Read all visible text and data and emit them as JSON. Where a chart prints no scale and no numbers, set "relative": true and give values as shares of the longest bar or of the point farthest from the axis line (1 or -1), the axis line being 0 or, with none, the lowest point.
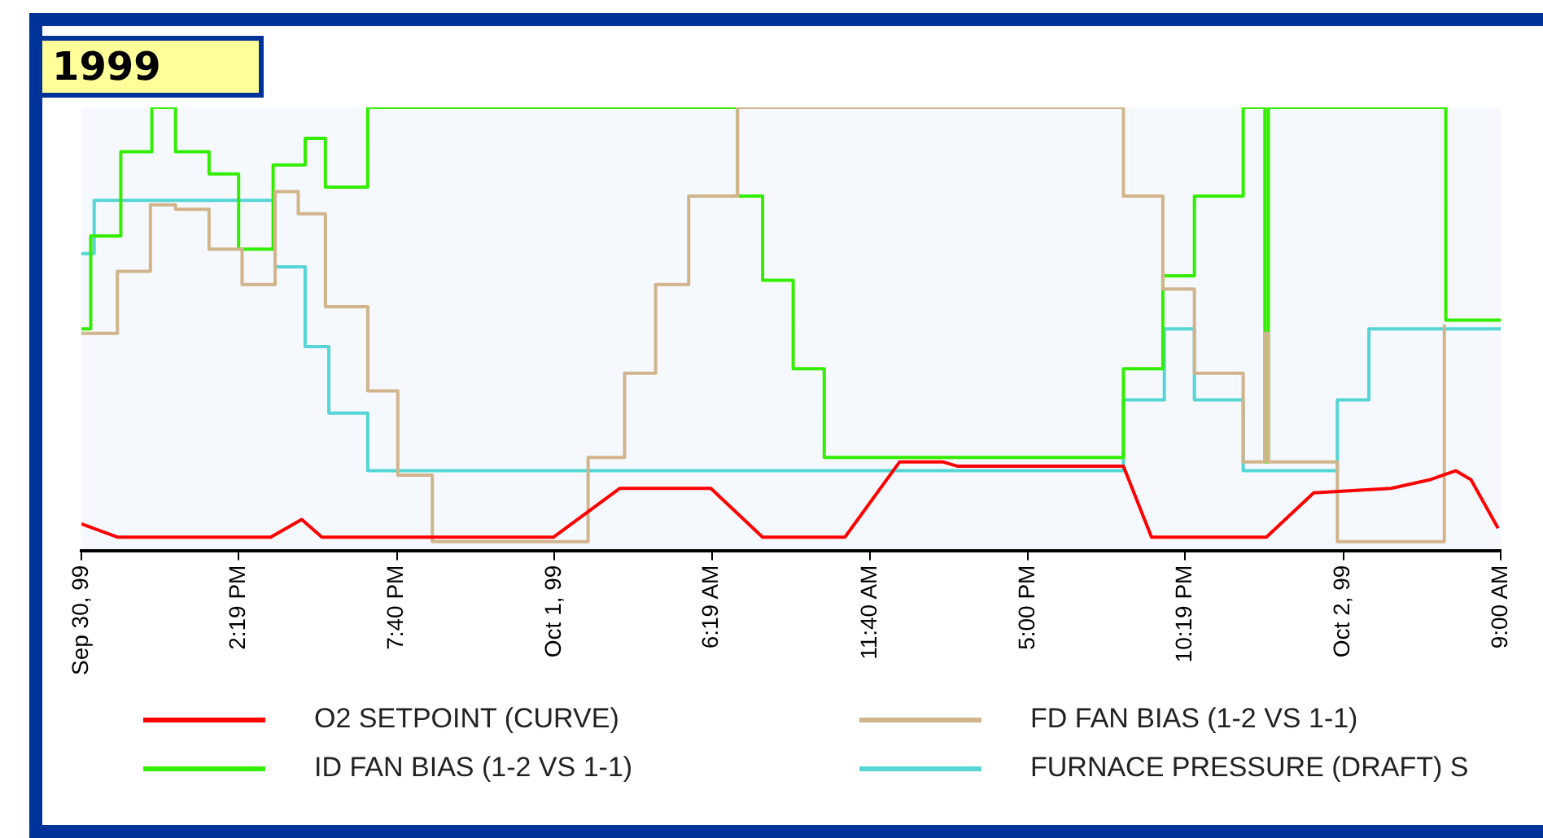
{
  "chart_data": {
    "type": "line",
    "title": "1999",
    "relative": true,
    "xlim": [
      "1999-09-30T09:00",
      "1999-10-02T09:00"
    ],
    "xticks": [
      {
        "value": "1999-09-30T09:00",
        "label": "Sep 30, 99"
      },
      {
        "value": "1999-09-30T14:19",
        "label": "2:19 PM"
      },
      {
        "value": "1999-09-30T19:40",
        "label": "7:40 PM"
      },
      {
        "value": "1999-10-01T01:00",
        "label": "Oct 1, 99"
      },
      {
        "value": "1999-10-01T06:19",
        "label": "6:19 AM"
      },
      {
        "value": "1999-10-01T11:40",
        "label": "11:40 AM"
      },
      {
        "value": "1999-10-01T17:00",
        "label": "5:00 PM"
      },
      {
        "value": "1999-10-01T22:19",
        "label": "10:19 PM"
      },
      {
        "value": "1999-10-02T03:40",
        "label": "Oct 2, 99"
      },
      {
        "value": "1999-10-02T09:00",
        "label": "9:00 AM"
      }
    ],
    "legend": "bottom",
    "marker": "none",
    "line_style": "solid",
    "series": [
      {
        "name": "O2 SETPOINT (CURVE)",
        "color": "#ff0000",
        "x": [
          "1999-09-30T09:00",
          "1999-09-30T10:13",
          "1999-09-30T15:24",
          "1999-09-30T16:27",
          "1999-09-30T17:08",
          "1999-10-01T00:58",
          "1999-10-01T03:12",
          "1999-10-01T06:17",
          "1999-10-01T08:02",
          "1999-10-01T10:49",
          "1999-10-01T12:40",
          "1999-10-01T14:07",
          "1999-10-01T14:38",
          "1999-10-01T20:14",
          "1999-10-01T21:11",
          "1999-10-02T01:04",
          "1999-10-02T02:40",
          "1999-10-02T05:17",
          "1999-10-02T06:37",
          "1999-10-02T07:28",
          "1999-10-02T07:59",
          "1999-10-02T08:54"
        ],
        "values": [
          0.06,
          0.03,
          0.03,
          0.07,
          0.03,
          0.03,
          0.14,
          0.14,
          0.03,
          0.03,
          0.2,
          0.2,
          0.19,
          0.19,
          0.03,
          0.03,
          0.13,
          0.14,
          0.16,
          0.18,
          0.16,
          0.05
        ]
      },
      {
        "name": "FD FAN BIAS (1-2 VS 1-1)",
        "color": "#d2b48c",
        "x": [
          "1999-09-30T09:00",
          "1999-09-30T10:13",
          "1999-09-30T10:13",
          "1999-09-30T11:20",
          "1999-09-30T11:20",
          "1999-09-30T12:11",
          "1999-09-30T12:11",
          "1999-09-30T13:19",
          "1999-09-30T13:19",
          "1999-09-30T14:26",
          "1999-09-30T14:26",
          "1999-09-30T15:33",
          "1999-09-30T15:33",
          "1999-09-30T16:20",
          "1999-09-30T16:20",
          "1999-09-30T17:15",
          "1999-09-30T17:15",
          "1999-09-30T18:41",
          "1999-09-30T18:41",
          "1999-09-30T19:42",
          "1999-09-30T19:42",
          "1999-09-30T20:52",
          "1999-09-30T20:52",
          "1999-10-01T02:08",
          "1999-10-01T02:08",
          "1999-10-01T03:22",
          "1999-10-01T03:22",
          "1999-10-01T04:25",
          "1999-10-01T04:25",
          "1999-10-01T05:32",
          "1999-10-01T05:32",
          "1999-10-01T07:11",
          "1999-10-01T07:11",
          "1999-10-01T20:14",
          "1999-10-01T20:14",
          "1999-10-01T21:34",
          "1999-10-01T21:34",
          "1999-10-01T22:38",
          "1999-10-01T22:38",
          "1999-10-02T00:17",
          "1999-10-02T00:17",
          "1999-10-02T01:01",
          "1999-10-02T01:01",
          "1999-10-02T01:08",
          "1999-10-02T01:08",
          "1999-10-02T03:28",
          "1999-10-02T03:28",
          "1999-10-02T07:05",
          "1999-10-02T07:05"
        ],
        "values": [
          0.49,
          0.49,
          0.63,
          0.63,
          0.78,
          0.78,
          0.77,
          0.77,
          0.68,
          0.68,
          0.6,
          0.6,
          0.81,
          0.81,
          0.76,
          0.76,
          0.55,
          0.55,
          0.36,
          0.36,
          0.17,
          0.17,
          0.02,
          0.02,
          0.21,
          0.21,
          0.4,
          0.4,
          0.6,
          0.6,
          0.8,
          0.8,
          1,
          1,
          0.8,
          0.8,
          0.59,
          0.59,
          0.4,
          0.4,
          0.2,
          0.2,
          0.49,
          0.49,
          0.2,
          0.2,
          0.02,
          0.02,
          0.51
        ]
      },
      {
        "name": "ID FAN BIAS (1-2 VS 1-1)",
        "color": "#33ee00",
        "x": [
          "1999-09-30T09:00",
          "1999-09-30T09:19",
          "1999-09-30T09:19",
          "1999-09-30T10:20",
          "1999-09-30T10:20",
          "1999-09-30T11:23",
          "1999-09-30T11:23",
          "1999-09-30T12:11",
          "1999-09-30T12:11",
          "1999-09-30T13:19",
          "1999-09-30T13:19",
          "1999-09-30T14:19",
          "1999-09-30T14:19",
          "1999-09-30T15:29",
          "1999-09-30T15:29",
          "1999-09-30T16:34",
          "1999-09-30T16:34",
          "1999-09-30T17:15",
          "1999-09-30T17:15",
          "1999-09-30T18:41",
          "1999-09-30T18:41",
          "1999-10-01T07:11",
          "1999-10-01T07:11",
          "1999-10-01T08:02",
          "1999-10-01T08:02",
          "1999-10-01T09:04",
          "1999-10-01T09:04",
          "1999-10-01T10:07",
          "1999-10-01T10:07",
          "1999-10-01T20:14",
          "1999-10-01T20:14",
          "1999-10-01T21:34",
          "1999-10-01T21:34",
          "1999-10-01T22:38",
          "1999-10-01T22:38",
          "1999-10-02T00:17",
          "1999-10-02T00:17",
          "1999-10-02T01:01",
          "1999-10-02T01:01",
          "1999-10-02T01:08",
          "1999-10-02T01:08",
          "1999-10-02T07:08",
          "1999-10-02T07:08",
          "1999-10-02T09:00"
        ],
        "values": [
          0.5,
          0.5,
          0.71,
          0.71,
          0.9,
          0.9,
          1,
          1,
          0.9,
          0.9,
          0.85,
          0.85,
          0.68,
          0.68,
          0.87,
          0.87,
          0.93,
          0.93,
          0.82,
          0.82,
          1,
          1,
          0.8,
          0.8,
          0.61,
          0.61,
          0.41,
          0.41,
          0.21,
          0.21,
          0.41,
          0.41,
          0.62,
          0.62,
          0.8,
          0.8,
          1,
          1,
          0.2,
          0.2,
          1,
          1,
          0.52,
          0.52
        ]
      },
      {
        "name": "FURNACE PRESSURE (DRAFT) S",
        "color": "#55d5d5",
        "x": [
          "1999-09-30T09:00",
          "1999-09-30T09:26",
          "1999-09-30T09:26",
          "1999-09-30T15:33",
          "1999-09-30T15:33",
          "1999-09-30T16:34",
          "1999-09-30T16:34",
          "1999-09-30T17:22",
          "1999-09-30T17:22",
          "1999-09-30T18:41",
          "1999-09-30T18:41",
          "1999-10-01T20:14",
          "1999-10-01T20:14",
          "1999-10-01T21:37",
          "1999-10-01T21:37",
          "1999-10-01T22:38",
          "1999-10-01T22:38",
          "1999-10-02T00:17",
          "1999-10-02T00:17",
          "1999-10-02T03:28",
          "1999-10-02T03:28",
          "1999-10-02T04:32",
          "1999-10-02T04:32",
          "1999-10-02T09:00"
        ],
        "values": [
          0.67,
          0.67,
          0.79,
          0.79,
          0.64,
          0.64,
          0.46,
          0.46,
          0.31,
          0.31,
          0.18,
          0.18,
          0.34,
          0.34,
          0.5,
          0.5,
          0.34,
          0.34,
          0.18,
          0.18,
          0.34,
          0.34,
          0.5,
          0.5
        ]
      }
    ]
  }
}
